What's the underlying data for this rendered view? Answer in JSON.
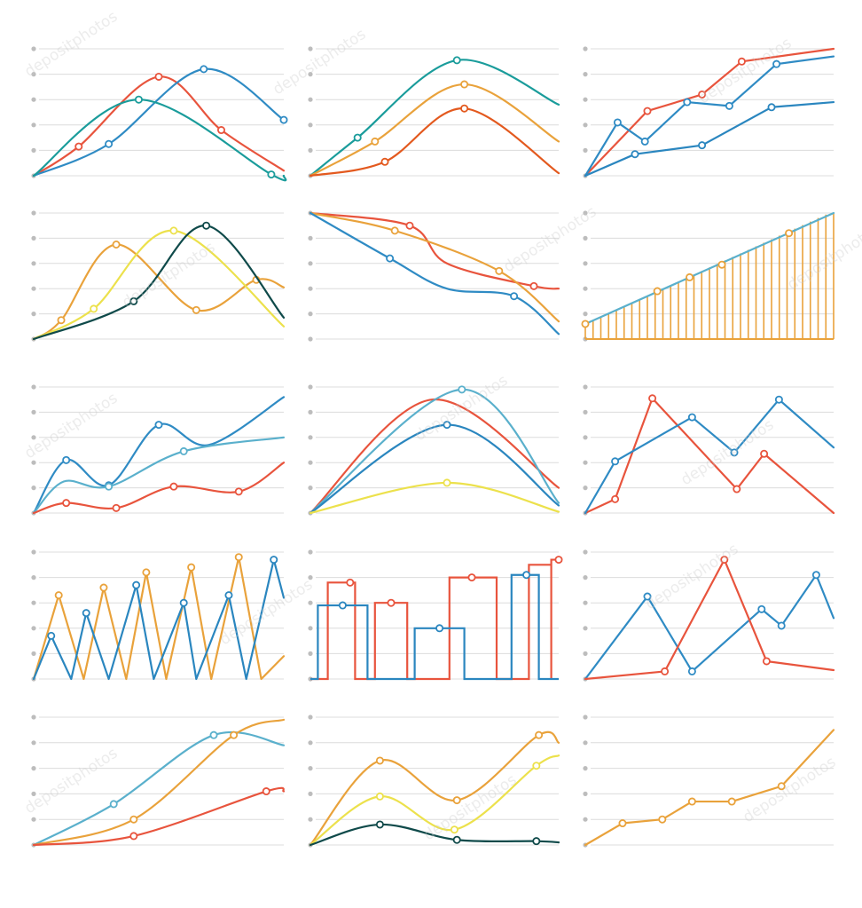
{
  "watermark": "depositphotos",
  "colors": {
    "grid": "#dcdcdc",
    "gridDot": "#bdbdbd",
    "red": "#e8543d",
    "blue": "#2f8bc4",
    "teal": "#1a9c9b",
    "orange": "#e9a23b",
    "dark_orange": "#e3591e",
    "yellow": "#f0c419",
    "light_yellow": "#ece14c",
    "dark_green": "#0f4a4a",
    "light_blue": "#5ab0cc",
    "mid_blue": "#2a86bf"
  },
  "chart_data": [
    {
      "type": "line",
      "smooth": true,
      "ylim": [
        0,
        5
      ],
      "grid_lines": 6,
      "xlim": [
        0,
        10
      ],
      "series": [
        {
          "color": "red",
          "x": [
            0,
            1.8,
            5,
            7.5,
            10
          ],
          "y": [
            0,
            1.15,
            3.9,
            1.8,
            0.2
          ],
          "markers": [
            1,
            2,
            3
          ]
        },
        {
          "color": "blue",
          "x": [
            0,
            3,
            6.8,
            10
          ],
          "y": [
            0,
            1.25,
            4.2,
            2.2
          ],
          "markers": [
            1,
            2,
            3
          ]
        },
        {
          "color": "teal",
          "x": [
            0,
            4.2,
            9.5,
            10
          ],
          "y": [
            0,
            3,
            0.05,
            0
          ],
          "markers": [
            1,
            2
          ]
        }
      ]
    },
    {
      "type": "line",
      "smooth": true,
      "ylim": [
        0,
        5
      ],
      "grid_lines": 6,
      "xlim": [
        0,
        10
      ],
      "series": [
        {
          "color": "teal",
          "x": [
            0,
            1.9,
            5.9,
            10
          ],
          "y": [
            0,
            1.5,
            4.55,
            2.8
          ],
          "markers": [
            1,
            2
          ]
        },
        {
          "color": "orange",
          "x": [
            0,
            2.6,
            6.2,
            10
          ],
          "y": [
            0,
            1.35,
            3.6,
            1.35
          ],
          "markers": [
            1,
            2
          ]
        },
        {
          "color": "dark_orange",
          "x": [
            0,
            3,
            6.2,
            10
          ],
          "y": [
            0,
            0.55,
            2.65,
            0.1
          ],
          "markers": [
            1,
            2
          ]
        }
      ]
    },
    {
      "type": "line",
      "smooth": false,
      "ylim": [
        0,
        5
      ],
      "grid_lines": 6,
      "xlim": [
        0,
        10
      ],
      "series": [
        {
          "color": "red",
          "x": [
            0,
            2.5,
            4.7,
            6.3,
            10
          ],
          "y": [
            0,
            2.55,
            3.2,
            4.5,
            5
          ],
          "markers": [
            1,
            2,
            3
          ]
        },
        {
          "color": "blue",
          "x": [
            0,
            1.3,
            2.4,
            4.1,
            5.8,
            7.7,
            10
          ],
          "y": [
            0,
            2.1,
            1.35,
            2.9,
            2.75,
            4.4,
            4.7
          ],
          "markers": [
            1,
            2,
            3,
            4,
            5
          ]
        },
        {
          "color": "mid_blue",
          "x": [
            0,
            2,
            4.7,
            7.5,
            10
          ],
          "y": [
            0,
            0.85,
            1.2,
            2.7,
            2.9
          ],
          "markers": [
            1,
            2,
            3
          ]
        }
      ]
    },
    {
      "type": "line",
      "smooth": true,
      "ylim": [
        0,
        5
      ],
      "grid_lines": 6,
      "xlim": [
        0,
        10
      ],
      "series": [
        {
          "color": "orange",
          "x": [
            0,
            1.1,
            3.3,
            6.5,
            8.9,
            10
          ],
          "y": [
            0,
            0.75,
            3.75,
            1.15,
            2.35,
            2.05
          ],
          "markers": [
            1,
            2,
            3,
            4
          ]
        },
        {
          "color": "light_yellow",
          "x": [
            0,
            2.4,
            5.6,
            10
          ],
          "y": [
            0,
            1.2,
            4.3,
            0.5
          ],
          "markers": [
            1,
            2
          ]
        },
        {
          "color": "dark_green",
          "x": [
            0,
            4,
            6.9,
            10
          ],
          "y": [
            0,
            1.5,
            4.5,
            0.85
          ],
          "markers": [
            1,
            2
          ]
        }
      ]
    },
    {
      "type": "line",
      "smooth": true,
      "ylim": [
        0,
        5
      ],
      "grid_lines": 6,
      "xlim": [
        0,
        10
      ],
      "series": [
        {
          "color": "red",
          "x": [
            0,
            4,
            5.5,
            9,
            10
          ],
          "y": [
            5,
            4.5,
            3,
            2.1,
            2
          ],
          "markers": [
            1,
            3
          ]
        },
        {
          "color": "orange",
          "x": [
            0,
            3.4,
            7.6,
            10
          ],
          "y": [
            5,
            4.3,
            2.7,
            0.7
          ],
          "markers": [
            1,
            2
          ]
        },
        {
          "color": "blue",
          "x": [
            0,
            3.2,
            5.5,
            8.2,
            10
          ],
          "y": [
            5,
            3.2,
            2,
            1.7,
            0.2
          ],
          "markers": [
            1,
            3
          ]
        }
      ]
    },
    {
      "type": "bar",
      "ylim": [
        0,
        5
      ],
      "grid_lines": 6,
      "xlim": [
        0,
        10
      ],
      "bar_count": 33,
      "bar_color": "orange",
      "values": [
        0.6,
        0.74,
        0.88,
        1.02,
        1.16,
        1.3,
        1.44,
        1.58,
        1.72,
        1.86,
        2.0,
        2.14,
        2.28,
        2.42,
        2.56,
        2.7,
        2.84,
        2.98,
        3.12,
        3.26,
        3.4,
        3.54,
        3.68,
        3.82,
        3.96,
        4.1,
        4.24,
        4.38,
        4.52,
        4.66,
        4.8,
        4.94,
        5.0
      ],
      "series": [
        {
          "color": "light_blue",
          "x": [
            0,
            10
          ],
          "y": [
            0.6,
            5
          ],
          "markers": []
        },
        {
          "color": "orange",
          "x": [
            0,
            2.9,
            4.2,
            5.5,
            8.2
          ],
          "y": [
            0.6,
            1.9,
            2.45,
            2.95,
            4.2
          ],
          "markers": [
            0,
            1,
            2,
            3,
            4
          ],
          "markers_only": true
        }
      ]
    },
    {
      "type": "line",
      "smooth": true,
      "ylim": [
        0,
        5
      ],
      "grid_lines": 6,
      "xlim": [
        0,
        10
      ],
      "series": [
        {
          "color": "blue",
          "x": [
            0,
            1.3,
            3,
            5,
            7,
            10
          ],
          "y": [
            0,
            2.1,
            1.1,
            3.5,
            2.7,
            4.6
          ],
          "markers": [
            1,
            2,
            3
          ]
        },
        {
          "color": "light_blue",
          "x": [
            0,
            1.2,
            3,
            6,
            10
          ],
          "y": [
            0,
            1.25,
            1.05,
            2.45,
            3.0
          ],
          "markers": [
            2,
            3
          ]
        },
        {
          "color": "red",
          "x": [
            0,
            1.3,
            3.3,
            5.6,
            8.2,
            10
          ],
          "y": [
            0,
            0.4,
            0.2,
            1.05,
            0.85,
            2.0
          ],
          "markers": [
            1,
            2,
            3,
            4
          ]
        }
      ]
    },
    {
      "type": "line",
      "smooth": true,
      "ylim": [
        0,
        5
      ],
      "grid_lines": 6,
      "xlim": [
        0,
        10
      ],
      "series": [
        {
          "color": "red",
          "x": [
            0,
            4.9,
            10
          ],
          "y": [
            0,
            4.5,
            1
          ]
        },
        {
          "color": "light_blue",
          "x": [
            0,
            6.1,
            10
          ],
          "y": [
            0,
            4.9,
            0.4
          ],
          "markers": [
            1
          ]
        },
        {
          "color": "mid_blue",
          "x": [
            0,
            5.5,
            10
          ],
          "y": [
            0,
            3.5,
            0.3
          ],
          "markers": [
            1
          ]
        },
        {
          "color": "light_yellow",
          "x": [
            0,
            5.5,
            10
          ],
          "y": [
            0,
            1.2,
            0.05
          ],
          "markers": [
            1
          ]
        }
      ]
    },
    {
      "type": "line",
      "smooth": false,
      "ylim": [
        0,
        5
      ],
      "grid_lines": 6,
      "xlim": [
        0,
        10
      ],
      "series": [
        {
          "color": "red",
          "x": [
            0,
            1.2,
            2.7,
            6.1,
            7.2,
            10
          ],
          "y": [
            0,
            0.55,
            4.55,
            0.95,
            2.35,
            0
          ],
          "markers": [
            1,
            2,
            3,
            4
          ]
        },
        {
          "color": "blue",
          "x": [
            0,
            1.2,
            4.3,
            6,
            7.8,
            10
          ],
          "y": [
            0,
            2.05,
            3.8,
            2.4,
            4.5,
            2.6
          ],
          "markers": [
            1,
            2,
            3,
            4
          ]
        }
      ]
    },
    {
      "type": "line",
      "smooth": false,
      "ylim": [
        0,
        5
      ],
      "grid_lines": 6,
      "xlim": [
        0,
        10
      ],
      "series": [
        {
          "color": "orange",
          "x": [
            0,
            1,
            2,
            2.8,
            3.7,
            4.5,
            5.3,
            6.3,
            7.1,
            8.2,
            9.1,
            10
          ],
          "y": [
            0,
            3.3,
            0,
            3.6,
            0,
            4.2,
            0,
            4.4,
            0,
            4.8,
            0,
            0.9
          ],
          "markers": [
            1,
            3,
            5,
            7,
            9
          ]
        },
        {
          "color": "mid_blue",
          "x": [
            0,
            0.7,
            1.5,
            2.1,
            3,
            4.1,
            4.8,
            6,
            6.5,
            7.8,
            8.5,
            9.6,
            10
          ],
          "y": [
            0,
            1.7,
            0,
            2.6,
            0,
            3.7,
            0,
            3,
            0,
            3.3,
            0,
            4.7,
            3.2
          ],
          "markers": [
            1,
            3,
            5,
            7,
            9,
            11
          ]
        }
      ]
    },
    {
      "type": "step",
      "ylim": [
        0,
        5
      ],
      "grid_lines": 6,
      "xlim": [
        0,
        10
      ],
      "series": [
        {
          "color": "red",
          "boxes": [
            [
              0.7,
              1.8,
              3.8
            ],
            [
              2.6,
              3.9,
              3.0
            ],
            [
              5.6,
              7.5,
              4.0
            ],
            [
              8.8,
              9.7,
              4.5
            ]
          ],
          "tail": [
            9.7,
            10,
            4.7
          ],
          "markers_x": [
            1.6,
            3.25,
            6.5,
            10
          ]
        },
        {
          "color": "mid_blue",
          "boxes": [
            [
              0.3,
              2.3,
              2.9
            ],
            [
              4.2,
              6.2,
              2.0
            ],
            [
              8.1,
              9.2,
              4.1
            ]
          ],
          "markers_x": [
            1.3,
            5.2,
            8.7
          ]
        }
      ]
    },
    {
      "type": "line",
      "smooth": false,
      "ylim": [
        0,
        5
      ],
      "grid_lines": 6,
      "xlim": [
        0,
        10
      ],
      "series": [
        {
          "color": "blue",
          "x": [
            0,
            2.5,
            4.3,
            7.1,
            7.9,
            9.3,
            10
          ],
          "y": [
            0,
            3.25,
            0.3,
            2.75,
            2.1,
            4.1,
            2.4
          ],
          "markers": [
            1,
            2,
            3,
            4,
            5
          ]
        },
        {
          "color": "red",
          "x": [
            0,
            3.2,
            5.6,
            7.3,
            10
          ],
          "y": [
            0,
            0.3,
            4.7,
            0.7,
            0.35
          ],
          "markers": [
            1,
            2,
            3
          ]
        }
      ]
    },
    {
      "type": "line",
      "smooth": true,
      "ylim": [
        0,
        5
      ],
      "grid_lines": 6,
      "xlim": [
        0,
        10
      ],
      "series": [
        {
          "color": "light_blue",
          "x": [
            0,
            3.2,
            7.2,
            10
          ],
          "y": [
            0,
            1.6,
            4.3,
            3.9
          ],
          "markers": [
            1,
            2
          ]
        },
        {
          "color": "orange",
          "x": [
            0,
            4,
            8,
            10
          ],
          "y": [
            0,
            1.0,
            4.3,
            4.9
          ],
          "markers": [
            1,
            2
          ]
        },
        {
          "color": "red",
          "x": [
            0,
            4,
            9.3,
            10
          ],
          "y": [
            0,
            0.35,
            2.1,
            2.1
          ],
          "markers": [
            1,
            2
          ]
        }
      ]
    },
    {
      "type": "line",
      "smooth": true,
      "ylim": [
        0,
        5
      ],
      "grid_lines": 6,
      "xlim": [
        0,
        10
      ],
      "series": [
        {
          "color": "orange",
          "x": [
            0,
            2.8,
            5.9,
            9.2,
            10
          ],
          "y": [
            0,
            3.3,
            1.75,
            4.3,
            4.0
          ],
          "markers": [
            1,
            2,
            3
          ]
        },
        {
          "color": "light_yellow",
          "x": [
            0,
            2.8,
            5.8,
            9.1,
            10
          ],
          "y": [
            0,
            1.9,
            0.6,
            3.1,
            3.5
          ],
          "markers": [
            1,
            2,
            3
          ]
        },
        {
          "color": "dark_green",
          "x": [
            0,
            2.8,
            5.9,
            9.1,
            10
          ],
          "y": [
            0,
            0.8,
            0.2,
            0.15,
            0.1
          ],
          "markers": [
            1,
            2,
            3
          ]
        }
      ]
    },
    {
      "type": "line",
      "smooth": false,
      "ylim": [
        0,
        5
      ],
      "grid_lines": 6,
      "xlim": [
        0,
        10
      ],
      "series": [
        {
          "color": "orange",
          "x": [
            0,
            1.5,
            3.1,
            4.3,
            5.9,
            7.9,
            10
          ],
          "y": [
            0,
            0.85,
            1.0,
            1.7,
            1.7,
            2.3,
            4.5
          ],
          "markers": [
            1,
            2,
            3,
            4,
            5
          ]
        }
      ]
    }
  ]
}
